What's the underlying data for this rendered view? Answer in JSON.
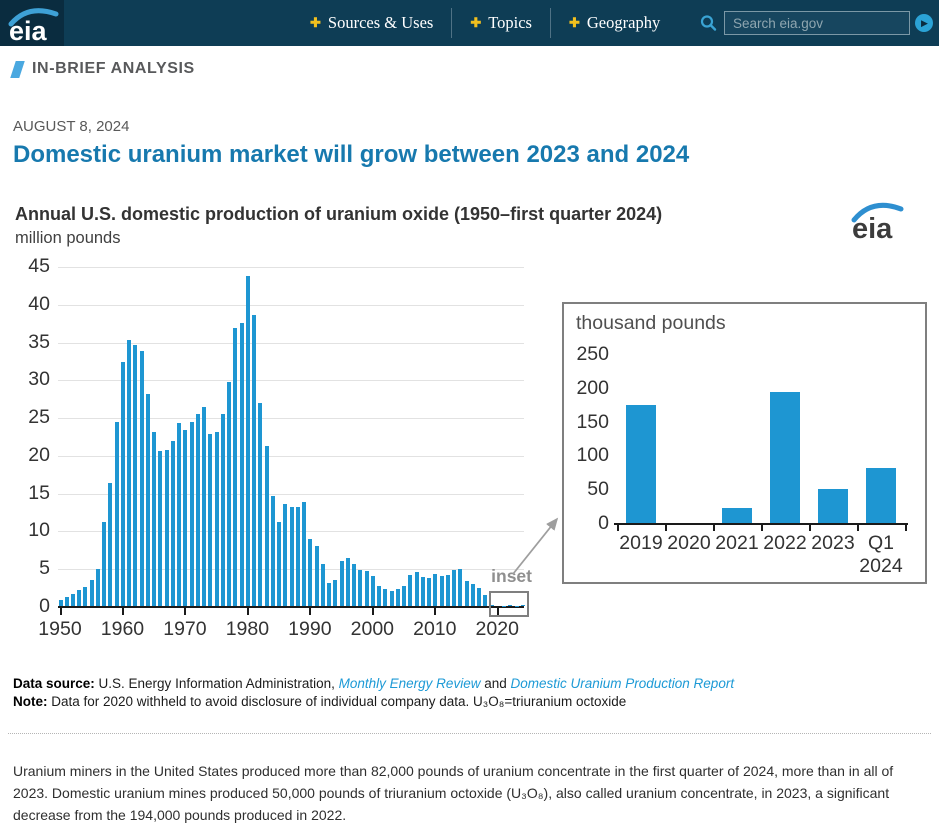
{
  "header": {
    "logo_text": "eia",
    "nav": [
      {
        "label": "Sources & Uses"
      },
      {
        "label": "Topics"
      },
      {
        "label": "Geography"
      }
    ],
    "plus_glyph": "✚",
    "search": {
      "placeholder": "Search eia.gov",
      "go_glyph": "▶"
    }
  },
  "article": {
    "section_label": "IN-BRIEF ANALYSIS",
    "date": "AUGUST 8, 2024",
    "title": "Domestic uranium market will grow between 2023 and 2024",
    "source_label": "Data source:",
    "source_text": " U.S. Energy Information Administration, ",
    "source_link1": "Monthly Energy Review",
    "source_and": " and ",
    "source_link2": "Domestic Uranium Production Report",
    "note_label": "Note:",
    "note_text": " Data for 2020 withheld to avoid disclosure of individual company data. U₃O₈=triuranium octoxide",
    "body": "Uranium miners in the United States produced more than 82,000 pounds of uranium concentrate in the first quarter of 2024, more than in all of 2023. Domestic uranium mines produced 50,000 pounds of triuranium octoxide (U₃O₈), also called uranium concentrate, in 2023, a significant decrease from the 194,000 pounds produced in 2022."
  },
  "colors": {
    "bar_blue": "#1e96d2",
    "header_bg": "#0e3d55",
    "title_blue": "#1779ae",
    "accent_yellow": "#f2c01e"
  },
  "chart_data": [
    {
      "type": "bar",
      "title": "Annual U.S. domestic production of uranium oxide (1950–first quarter 2024)",
      "ylabel": "million pounds",
      "x_start": 1950,
      "x_end": 2024,
      "ylim": [
        0,
        45
      ],
      "ytick_step": 5,
      "x_ticks": [
        1950,
        1960,
        1970,
        1980,
        1990,
        2000,
        2010,
        2020
      ],
      "grid": true,
      "withheld_year": 2020,
      "inset_label": "inset",
      "values": [
        0.8,
        1.2,
        1.6,
        2.1,
        2.5,
        3.5,
        4.9,
        11.1,
        16.3,
        24.4,
        32.3,
        35.2,
        34.6,
        33.7,
        28.1,
        23.0,
        20.5,
        20.6,
        21.8,
        24.2,
        23.3,
        24.4,
        25.4,
        26.3,
        22.8,
        23.0,
        25.4,
        29.6,
        36.8,
        37.4,
        43.7,
        38.5,
        26.9,
        21.2,
        14.6,
        11.1,
        13.5,
        13.1,
        13.1,
        13.8,
        8.9,
        8.0,
        5.6,
        3.1,
        3.4,
        6.0,
        6.3,
        5.6,
        4.7,
        4.6,
        4.0,
        2.6,
        2.3,
        2.0,
        2.3,
        2.7,
        4.1,
        4.5,
        3.9,
        3.7,
        4.2,
        4.0,
        4.1,
        4.7,
        4.9,
        3.3,
        2.9,
        2.4,
        1.5,
        0.17,
        null,
        0.02,
        0.19,
        0.05,
        0.08
      ]
    },
    {
      "type": "bar",
      "title": "thousand pounds",
      "categories": [
        {
          "label": "2019"
        },
        {
          "label": "2020"
        },
        {
          "label": "2021"
        },
        {
          "label": "2022"
        },
        {
          "label": "2023"
        },
        {
          "label": "Q1",
          "label2": "2024"
        }
      ],
      "values": [
        174,
        null,
        22,
        194,
        50,
        82
      ],
      "ylim": [
        0,
        250
      ],
      "ytick_step": 50,
      "grid": false
    }
  ]
}
